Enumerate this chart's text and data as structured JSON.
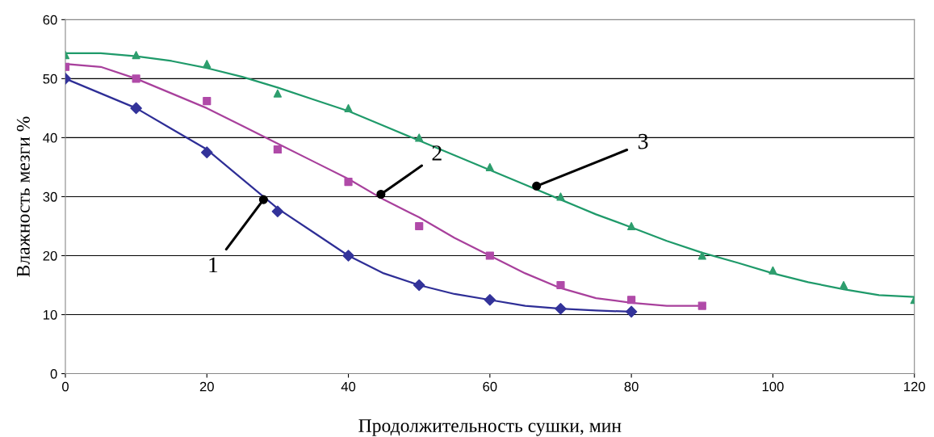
{
  "chart_data": {
    "type": "scatter",
    "xlabel": "Продолжительность сушки, мин",
    "ylabel": "Влажность мезги %",
    "xlim": [
      0,
      120
    ],
    "xticks": [
      0,
      20,
      40,
      60,
      80,
      100,
      120
    ],
    "ylim": [
      0,
      60
    ],
    "yticks": [
      0,
      10,
      20,
      30,
      40,
      50,
      60
    ],
    "grid": "y",
    "legend": false,
    "series": [
      {
        "marker": "diamond",
        "color": "#33339a",
        "x": [
          0,
          10,
          20,
          30,
          40,
          50,
          60,
          70,
          80
        ],
        "values": [
          50,
          45,
          37.5,
          27.5,
          20,
          15,
          12.5,
          11,
          10.5
        ]
      },
      {
        "marker": "square",
        "color": "#b04aa8",
        "x": [
          0,
          10,
          20,
          30,
          40,
          50,
          60,
          70,
          80,
          90
        ],
        "values": [
          52,
          50,
          46.2,
          38,
          32.5,
          25,
          20,
          15,
          12.5,
          11.5
        ]
      },
      {
        "marker": "triangle",
        "color": "#2e9e6e",
        "x": [
          0,
          10,
          20,
          30,
          40,
          50,
          60,
          70,
          80,
          90,
          100,
          110,
          120
        ],
        "values": [
          54,
          54,
          52.5,
          47.5,
          45,
          40,
          35,
          30,
          25,
          20,
          17.5,
          15,
          12.5
        ]
      },
      {
        "type": "line",
        "marker": "none",
        "color": "#2e2e96",
        "x": [
          0,
          5,
          10,
          15,
          20,
          25,
          30,
          35,
          40,
          45,
          50,
          55,
          60,
          65,
          70,
          75,
          80
        ],
        "values": [
          50,
          47.5,
          45,
          41.5,
          38,
          33,
          28,
          24,
          20,
          17,
          15,
          13.5,
          12.5,
          11.5,
          11,
          10.7,
          10.5
        ]
      },
      {
        "type": "line",
        "marker": "none",
        "color": "#a8409c",
        "x": [
          0,
          5,
          10,
          15,
          20,
          25,
          30,
          35,
          40,
          45,
          50,
          55,
          60,
          65,
          70,
          75,
          80,
          85,
          90
        ],
        "values": [
          52.5,
          52,
          50,
          47.5,
          45,
          42,
          39,
          36,
          33,
          29.5,
          26.5,
          23,
          20,
          17,
          14.5,
          12.8,
          12,
          11.5,
          11.5
        ]
      },
      {
        "type": "line",
        "marker": "none",
        "color": "#1f9a6a",
        "x": [
          0,
          5,
          10,
          15,
          20,
          25,
          30,
          35,
          40,
          45,
          50,
          55,
          60,
          65,
          70,
          75,
          80,
          85,
          90,
          95,
          100,
          105,
          110,
          115,
          120
        ],
        "values": [
          54.3,
          54.3,
          53.8,
          53,
          51.8,
          50.3,
          48.5,
          46.5,
          44.5,
          42,
          39.5,
          37,
          34.5,
          32,
          29.5,
          27,
          24.8,
          22.5,
          20.5,
          18.8,
          17,
          15.5,
          14.3,
          13.3,
          13
        ]
      }
    ],
    "annotations": [
      {
        "text": "1",
        "x": 28,
        "y": 29.5
      },
      {
        "text": "2",
        "x": 44.6,
        "y": 30.4
      },
      {
        "text": "3",
        "x": 66.6,
        "y": 31.8
      }
    ]
  }
}
